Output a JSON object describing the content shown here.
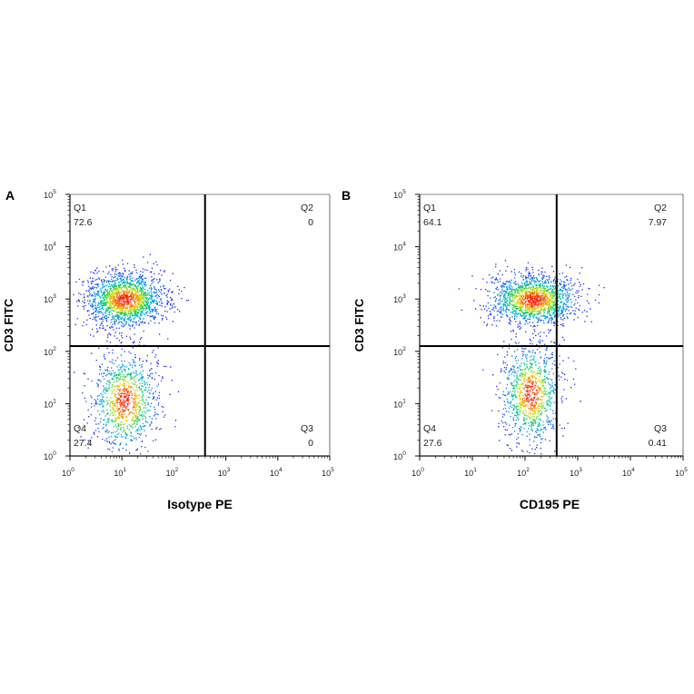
{
  "chart_data": [
    {
      "type": "scatter",
      "panel": "A",
      "ylabel": "CD3 FITC",
      "xlabel": "Isotype PE",
      "xlim": [
        0,
        5
      ],
      "ylim": [
        0,
        5
      ],
      "scale": "log",
      "tick_base": "10",
      "x_tick_exponents": [
        "0",
        "1",
        "2",
        "3",
        "4",
        "5"
      ],
      "y_tick_exponents": [
        "0",
        "1",
        "2",
        "3",
        "4",
        "5"
      ],
      "gate": {
        "x": 2.6,
        "y": 2.1
      },
      "quadrants": [
        {
          "name": "Q1",
          "value": "72.6",
          "pos": "top-left"
        },
        {
          "name": "Q2",
          "value": "0",
          "pos": "top-right"
        },
        {
          "name": "Q3",
          "value": "0",
          "pos": "bottom-right"
        },
        {
          "name": "Q4",
          "value": "27.4",
          "pos": "bottom-left"
        }
      ],
      "populations": [
        {
          "cx": 1.05,
          "cy": 3.0,
          "sx": 0.38,
          "sy": 0.26,
          "n": 1700
        },
        {
          "cx": 1.05,
          "cy": 1.05,
          "sx": 0.32,
          "sy": 0.48,
          "n": 1000
        }
      ]
    },
    {
      "type": "scatter",
      "panel": "B",
      "ylabel": "CD3 FITC",
      "xlabel": "CD195 PE",
      "xlim": [
        0,
        5
      ],
      "ylim": [
        0,
        5
      ],
      "scale": "log",
      "tick_base": "10",
      "x_tick_exponents": [
        "0",
        "1",
        "2",
        "3",
        "4",
        "5"
      ],
      "y_tick_exponents": [
        "0",
        "1",
        "2",
        "3",
        "4",
        "5"
      ],
      "gate": {
        "x": 2.6,
        "y": 2.1
      },
      "quadrants": [
        {
          "name": "Q1",
          "value": "64.1",
          "pos": "top-left"
        },
        {
          "name": "Q2",
          "value": "7.97",
          "pos": "top-right"
        },
        {
          "name": "Q3",
          "value": "0.41",
          "pos": "bottom-right"
        },
        {
          "name": "Q4",
          "value": "27.6",
          "pos": "bottom-left"
        }
      ],
      "populations": [
        {
          "cx": 2.15,
          "cy": 3.0,
          "sx": 0.42,
          "sy": 0.24,
          "n": 1600
        },
        {
          "cx": 2.1,
          "cy": 1.2,
          "sx": 0.28,
          "sy": 0.5,
          "n": 950
        }
      ]
    }
  ],
  "colors": {
    "axis": "#111111",
    "density_low": "#1a1aff",
    "density_mid": "#00cc66",
    "density_high": "#ff2200"
  }
}
